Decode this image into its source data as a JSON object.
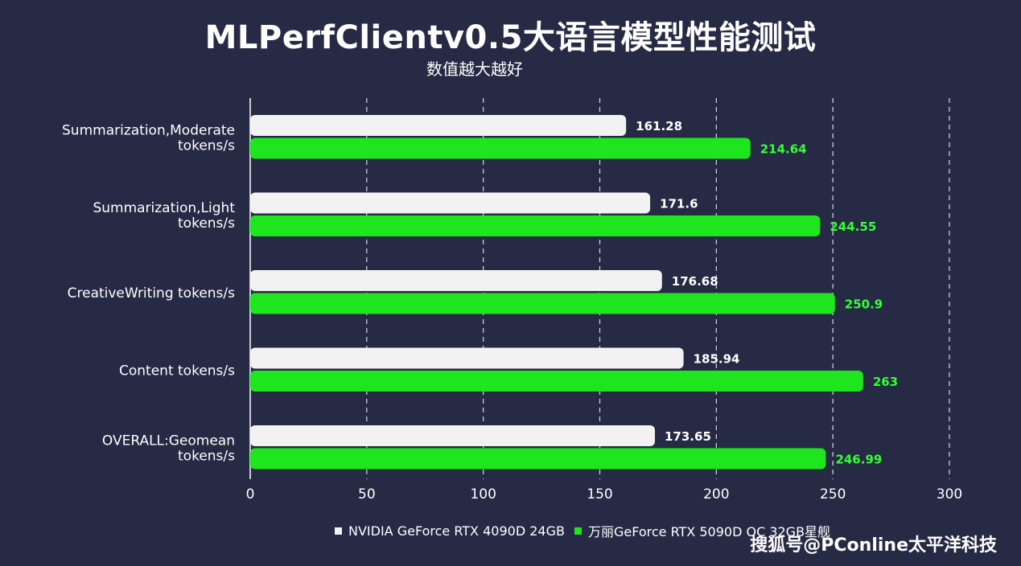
{
  "chart_data": {
    "type": "bar",
    "orientation": "horizontal",
    "title": "MLPerfClientv0.5大语言模型性能测试",
    "subtitle": "数值越大越好",
    "categories": [
      [
        "Summarization,Moderate",
        "tokens/s"
      ],
      [
        "Summarization,Light",
        "tokens/s"
      ],
      [
        "CreativeWriting tokens/s"
      ],
      [
        "Content tokens/s"
      ],
      [
        "OVERALL:Geomean",
        "tokens/s"
      ]
    ],
    "series": [
      {
        "name": "NVIDIA GeForce RTX 4090D 24GB",
        "color": "#f2f2f2",
        "label_color": "#ffffff",
        "values": [
          161.28,
          171.6,
          176.68,
          185.94,
          173.65
        ],
        "labels": [
          "161.28",
          "171.6",
          "176.68",
          "185.94",
          "173.65"
        ]
      },
      {
        "name": "万丽GeForce RTX 5090D OC 32GB星舰",
        "color": "#1ee51e",
        "label_color": "#33ff33",
        "values": [
          214.64,
          244.55,
          250.9,
          263,
          246.99
        ],
        "labels": [
          "214.64",
          "244.55",
          "250.9",
          "263",
          "246.99"
        ]
      }
    ],
    "xlim": [
      0,
      300
    ],
    "xticks": [
      "0",
      "50",
      "100",
      "150",
      "200",
      "250",
      "300"
    ],
    "grid": "vertical dashed",
    "legend_position": "bottom"
  },
  "watermark": "搜狐号@PConline太平洋科技"
}
